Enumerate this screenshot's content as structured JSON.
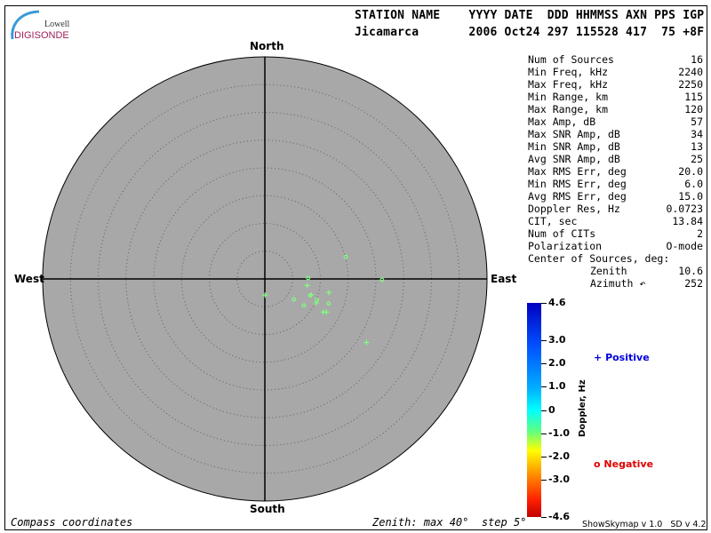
{
  "logo": {
    "line1": "Lowell",
    "line2": "DIGISONDE"
  },
  "header": {
    "labels": "STATION NAME    YYYY DATE  DDD HHMMSS AXN PPS IGP",
    "values": "Jicamarca       2006 Oct24 297 115528 417  75 +8F"
  },
  "stats": [
    {
      "label": "Num of Sources",
      "value": "16"
    },
    {
      "label": "Min Freq, kHz",
      "value": "2240"
    },
    {
      "label": "Max Freq, kHz",
      "value": "2250"
    },
    {
      "label": "Min Range, km",
      "value": "115"
    },
    {
      "label": "Max Range, km",
      "value": "120"
    },
    {
      "label": "Max Amp, dB",
      "value": "57"
    },
    {
      "label": "Max SNR Amp, dB",
      "value": "34"
    },
    {
      "label": "Min SNR Amp, dB",
      "value": "13"
    },
    {
      "label": "Avg SNR Amp, dB",
      "value": "25"
    },
    {
      "label": "Max RMS Err, deg",
      "value": "20.0"
    },
    {
      "label": "Min RMS Err, deg",
      "value": "6.0"
    },
    {
      "label": "Avg RMS Err, deg",
      "value": "15.0"
    },
    {
      "label": "Doppler Res, Hz",
      "value": "0.0723"
    },
    {
      "label": "CIT, sec",
      "value": "13.84"
    },
    {
      "label": "Num of CITs",
      "value": "2"
    },
    {
      "label": "Polarization",
      "value": "O-mode"
    }
  ],
  "center": {
    "title": "Center of Sources, deg:",
    "zenith_label": "Zenith",
    "zenith": "10.6",
    "azimuth_label": "Azimuth ↶",
    "azimuth": "252"
  },
  "footer": {
    "left": "Compass coordinates",
    "right": "Zenith: max 40°  step 5°",
    "version": "ShowSkymap v 1.0   SD v 4.2"
  },
  "chart_data": {
    "type": "scatter",
    "projection": "polar skymap",
    "directions": {
      "north": "North",
      "south": "South",
      "east": "East",
      "west": "West"
    },
    "zenith_max": 40,
    "zenith_step": 5,
    "background": "#a8a8a8",
    "point_color": "#80ff80",
    "points": [
      {
        "zenith": 15.1,
        "azimuth": 74.6,
        "sign": "negative"
      },
      {
        "zenith": 7.8,
        "azimuth": 88.8,
        "sign": "negative"
      },
      {
        "zenith": 21.1,
        "azimuth": 90.4,
        "sign": "negative"
      },
      {
        "zenith": 6.4,
        "azimuth": 125.1,
        "sign": "negative"
      },
      {
        "zenith": 8.5,
        "azimuth": 124.2,
        "sign": "negative"
      },
      {
        "zenith": 10.1,
        "azimuth": 112.0,
        "sign": "negative"
      },
      {
        "zenith": 12.3,
        "azimuth": 111.1,
        "sign": "negative"
      },
      {
        "zenith": 8.7,
        "azimuth": 110.0,
        "sign": "negative"
      },
      {
        "zenith": 2.9,
        "azimuth": 179.0,
        "sign": "positive"
      },
      {
        "zenith": 7.7,
        "azimuth": 98.8,
        "sign": "positive"
      },
      {
        "zenith": 8.8,
        "azimuth": 109.0,
        "sign": "positive"
      },
      {
        "zenith": 11.8,
        "azimuth": 102.0,
        "sign": "positive"
      },
      {
        "zenith": 10.2,
        "azimuth": 115.1,
        "sign": "positive"
      },
      {
        "zenith": 12.1,
        "azimuth": 119.5,
        "sign": "positive"
      },
      {
        "zenith": 12.6,
        "azimuth": 118.3,
        "sign": "positive"
      },
      {
        "zenith": 21.6,
        "azimuth": 122.0,
        "sign": "positive"
      }
    ],
    "colorbar": {
      "label": "Doppler, Hz",
      "range": [
        -4.6,
        4.6
      ],
      "ticks": [
        "4.6",
        "3.0",
        "2.0",
        "1.0",
        "0",
        "-1.0",
        "-2.0",
        "-3.0",
        "-4.6"
      ],
      "tick_values": [
        4.6,
        3,
        2,
        1,
        0,
        -1,
        -2,
        -3,
        -4.6
      ]
    },
    "legend": {
      "positive": "Positive",
      "positive_symbol": "+",
      "positive_color": "#0000e0",
      "negative": "Negative",
      "negative_symbol": "o",
      "negative_color": "#e00000"
    }
  }
}
